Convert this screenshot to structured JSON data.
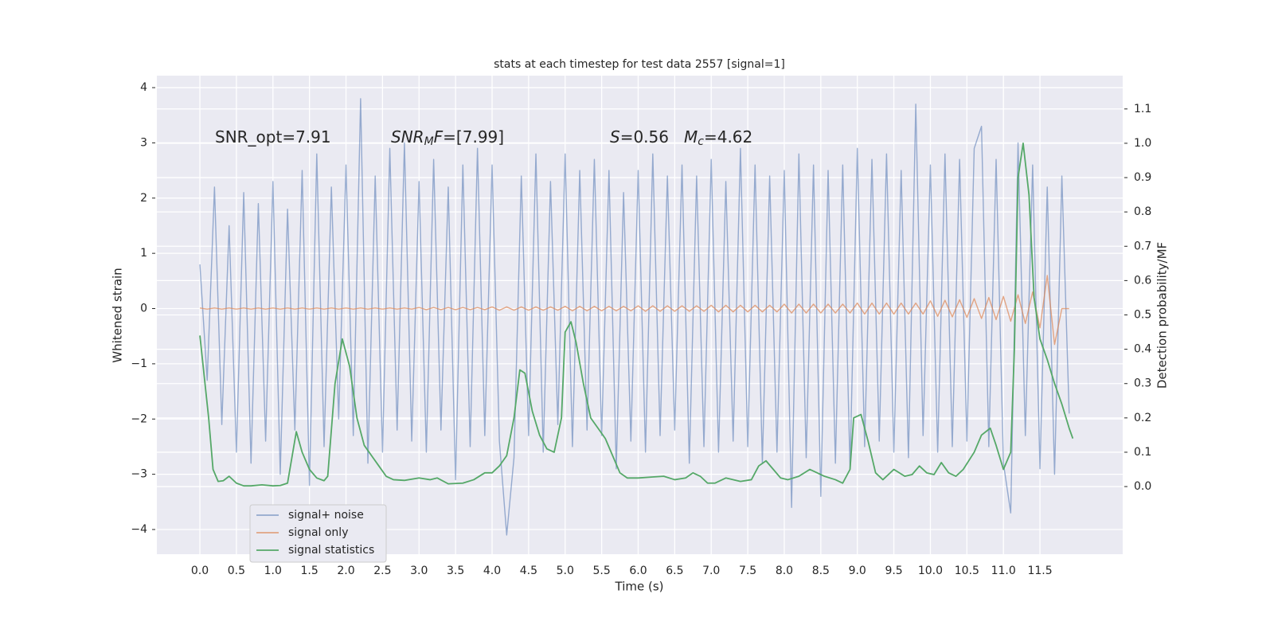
{
  "chart_data": {
    "type": "line",
    "title": "stats at each timestep for test data 2557 [signal=1]",
    "x_label": "Time (s)",
    "y_label": "Whitened strain",
    "y2_label": "Detection probability/MF",
    "xlim": [
      -0.589,
      12.633
    ],
    "ylim": [
      -4.447,
      4.217
    ],
    "y2lim": [
      -0.197,
      1.197
    ],
    "xticks": [
      {
        "value": 0,
        "label": "0.0"
      },
      0.5,
      {
        "value": 1,
        "label": "1.0"
      },
      1.5,
      {
        "value": 2,
        "label": "2.0"
      },
      2.5,
      {
        "value": 3,
        "label": "3.0"
      },
      3.5,
      {
        "value": 4,
        "label": "4.0"
      },
      4.5,
      {
        "value": 5,
        "label": "5.0"
      },
      5.5,
      {
        "value": 6,
        "label": "6.0"
      },
      6.5,
      {
        "value": 7,
        "label": "7.0"
      },
      7.5,
      {
        "value": 8,
        "label": "8.0"
      },
      8.5,
      {
        "value": 9,
        "label": "9.0"
      },
      9.5,
      {
        "value": 10,
        "label": "10.0"
      },
      10.5,
      {
        "value": 11,
        "label": "11.0"
      },
      11.5
    ],
    "yticks": [
      {
        "value": -4,
        "label": "−4"
      },
      {
        "value": -3,
        "label": "−3"
      },
      {
        "value": -2,
        "label": "−2"
      },
      {
        "value": -1,
        "label": "−1"
      },
      0,
      1,
      2,
      3,
      4
    ],
    "y2ticks": [
      {
        "value": 0,
        "label": "0.0"
      },
      0.1,
      0.2,
      0.3,
      0.4,
      0.5,
      0.6,
      0.7,
      0.8,
      0.9,
      {
        "value": 1,
        "label": "1.0"
      },
      1.1
    ],
    "grid": true,
    "legend": "lower left",
    "annotations": [
      [
        {
          "text": "SNR_opt=7.91",
          "style": "normal"
        }
      ],
      [
        {
          "text": "SNR",
          "style": "italic"
        },
        {
          "text": "M",
          "style": "italic-sub"
        },
        {
          "text": "F",
          "style": "italic"
        },
        {
          "text": "=[7.99]",
          "style": "normal"
        }
      ],
      [
        {
          "text": "S",
          "style": "italic"
        },
        {
          "text": "=0.56",
          "style": "normal"
        }
      ],
      [
        {
          "text": "M",
          "style": "italic"
        },
        {
          "text": "c",
          "style": "italic-sub"
        },
        {
          "text": "=4.62",
          "style": "normal"
        }
      ]
    ],
    "x": [
      0.0,
      0.1,
      0.2,
      0.3,
      0.4,
      0.5,
      0.6,
      0.7,
      0.8,
      0.9,
      1.0,
      1.1,
      1.2,
      1.3,
      1.4,
      1.5,
      1.6,
      1.7,
      1.8,
      1.9,
      2.0,
      2.1,
      2.2,
      2.3,
      2.4,
      2.5,
      2.6,
      2.7,
      2.8,
      2.9,
      3.0,
      3.1,
      3.2,
      3.3,
      3.4,
      3.5,
      3.6,
      3.7,
      3.8,
      3.9,
      4.0,
      4.1,
      4.2,
      4.3,
      4.4,
      4.5,
      4.6,
      4.7,
      4.8,
      4.9,
      5.0,
      5.1,
      5.2,
      5.3,
      5.4,
      5.5,
      5.6,
      5.7,
      5.8,
      5.9,
      6.0,
      6.1,
      6.2,
      6.3,
      6.4,
      6.5,
      6.6,
      6.7,
      6.8,
      6.9,
      7.0,
      7.1,
      7.2,
      7.3,
      7.4,
      7.5,
      7.6,
      7.7,
      7.8,
      7.9,
      8.0,
      8.1,
      8.2,
      8.3,
      8.4,
      8.5,
      8.6,
      8.7,
      8.8,
      8.9,
      9.0,
      9.1,
      9.2,
      9.3,
      9.4,
      9.5,
      9.6,
      9.7,
      9.8,
      9.9,
      10.0,
      10.1,
      10.2,
      10.3,
      10.4,
      10.5,
      10.6,
      10.7,
      10.8,
      10.9,
      11.0,
      11.1,
      11.2,
      11.3,
      11.4,
      11.5,
      11.6,
      11.7,
      11.8,
      11.9
    ],
    "series": [
      {
        "name": "signal+ noise",
        "color": "#4c72b0",
        "values": [
          0.8,
          -1.3,
          2.2,
          -2.1,
          1.5,
          -2.6,
          2.1,
          -2.8,
          1.9,
          -2.4,
          2.3,
          -3.0,
          1.8,
          -2.2,
          2.5,
          -3.2,
          2.8,
          -2.5,
          2.2,
          -2.0,
          2.6,
          -2.3,
          3.8,
          -2.8,
          2.4,
          -2.6,
          2.9,
          -2.2,
          3.0,
          -2.4,
          2.3,
          -2.6,
          2.7,
          -2.2,
          2.2,
          -3.1,
          2.6,
          -2.5,
          2.9,
          -2.3,
          2.6,
          -2.4,
          -4.1,
          -2.7,
          2.4,
          -2.3,
          2.8,
          -2.6,
          2.3,
          -2.1,
          2.8,
          -2.5,
          2.5,
          -2.2,
          2.7,
          -2.3,
          2.5,
          -2.9,
          2.1,
          -2.4,
          2.5,
          -2.6,
          2.8,
          -2.3,
          2.4,
          -2.2,
          2.6,
          -2.8,
          2.4,
          -2.5,
          2.7,
          -2.6,
          2.3,
          -2.4,
          2.9,
          -2.5,
          2.6,
          -2.8,
          2.4,
          -2.6,
          2.5,
          -3.6,
          2.8,
          -2.7,
          2.6,
          -3.4,
          2.5,
          -2.8,
          2.6,
          -2.9,
          2.9,
          -2.5,
          2.7,
          -2.4,
          2.8,
          -2.6,
          2.5,
          -2.7,
          3.7,
          -2.3,
          2.6,
          -2.6,
          2.8,
          -2.5,
          2.7,
          -2.4,
          2.9,
          3.3,
          -2.5,
          2.7,
          -2.8,
          -3.7,
          3.0,
          -2.3,
          2.6,
          -2.9,
          2.2,
          -3.0,
          2.4,
          -1.9
        ]
      },
      {
        "name": "signal only",
        "color": "#dd8452",
        "values": [
          0.01,
          -0.01,
          0.01,
          -0.01,
          0.01,
          -0.01,
          0.01,
          -0.01,
          0.01,
          -0.01,
          0.01,
          -0.01,
          0.01,
          -0.01,
          0.01,
          -0.01,
          0.01,
          -0.01,
          0.01,
          -0.01,
          0.01,
          -0.01,
          0.01,
          -0.01,
          0.01,
          -0.01,
          0.01,
          -0.01,
          0.01,
          -0.01,
          0.02,
          -0.02,
          0.02,
          -0.02,
          0.02,
          -0.02,
          0.02,
          -0.02,
          0.02,
          -0.02,
          0.03,
          -0.03,
          0.03,
          -0.03,
          0.03,
          -0.03,
          0.03,
          -0.03,
          0.03,
          -0.03,
          0.04,
          -0.04,
          0.04,
          -0.04,
          0.04,
          -0.04,
          0.04,
          -0.04,
          0.04,
          -0.04,
          0.05,
          -0.05,
          0.05,
          -0.05,
          0.05,
          -0.05,
          0.05,
          -0.05,
          0.05,
          -0.05,
          0.06,
          -0.06,
          0.06,
          -0.06,
          0.06,
          -0.06,
          0.06,
          -0.06,
          0.06,
          -0.06,
          0.08,
          -0.08,
          0.08,
          -0.08,
          0.08,
          -0.08,
          0.08,
          -0.08,
          0.08,
          -0.08,
          0.1,
          -0.1,
          0.1,
          -0.1,
          0.1,
          -0.1,
          0.1,
          -0.1,
          0.1,
          -0.1,
          0.14,
          -0.14,
          0.15,
          -0.15,
          0.16,
          -0.16,
          0.18,
          -0.18,
          0.2,
          -0.2,
          0.22,
          -0.23,
          0.25,
          -0.27,
          0.3,
          -0.35,
          0.6,
          -0.65,
          0,
          0
        ]
      },
      {
        "name": "signal statistics",
        "color": "#55a868",
        "axis": "y2",
        "x": [
          0.0,
          0.12,
          0.18,
          0.25,
          0.32,
          0.4,
          0.5,
          0.6,
          0.7,
          0.85,
          1.0,
          1.1,
          1.2,
          1.32,
          1.4,
          1.5,
          1.6,
          1.7,
          1.75,
          1.85,
          1.95,
          2.05,
          2.15,
          2.25,
          2.35,
          2.45,
          2.55,
          2.65,
          2.8,
          3.0,
          3.15,
          3.25,
          3.4,
          3.6,
          3.75,
          3.9,
          4.0,
          4.1,
          4.2,
          4.3,
          4.38,
          4.45,
          4.55,
          4.65,
          4.75,
          4.85,
          4.95,
          5.0,
          5.08,
          5.15,
          5.25,
          5.35,
          5.45,
          5.55,
          5.65,
          5.75,
          5.85,
          6.0,
          6.2,
          6.35,
          6.5,
          6.65,
          6.75,
          6.85,
          6.95,
          7.05,
          7.2,
          7.4,
          7.55,
          7.65,
          7.75,
          7.85,
          7.95,
          8.05,
          8.2,
          8.35,
          8.45,
          8.55,
          8.7,
          8.8,
          8.9,
          8.95,
          9.05,
          9.15,
          9.25,
          9.35,
          9.5,
          9.65,
          9.75,
          9.85,
          9.95,
          10.05,
          10.15,
          10.25,
          10.35,
          10.45,
          10.6,
          10.7,
          10.82,
          10.9,
          11.0,
          11.1,
          11.15,
          11.2,
          11.27,
          11.35,
          11.42,
          11.5,
          11.6,
          11.7,
          11.8,
          11.9,
          11.95
        ],
        "values": [
          0.44,
          0.2,
          0.05,
          0.015,
          0.017,
          0.03,
          0.01,
          0.002,
          0.002,
          0.005,
          0.002,
          0.003,
          0.01,
          0.16,
          0.1,
          0.05,
          0.025,
          0.017,
          0.03,
          0.3,
          0.43,
          0.35,
          0.2,
          0.12,
          0.09,
          0.06,
          0.03,
          0.02,
          0.018,
          0.025,
          0.02,
          0.025,
          0.008,
          0.01,
          0.02,
          0.04,
          0.04,
          0.06,
          0.09,
          0.2,
          0.34,
          0.33,
          0.22,
          0.15,
          0.11,
          0.1,
          0.2,
          0.45,
          0.48,
          0.42,
          0.3,
          0.2,
          0.17,
          0.14,
          0.09,
          0.04,
          0.025,
          0.025,
          0.028,
          0.03,
          0.02,
          0.025,
          0.04,
          0.03,
          0.01,
          0.01,
          0.025,
          0.015,
          0.02,
          0.06,
          0.075,
          0.05,
          0.025,
          0.02,
          0.03,
          0.05,
          0.04,
          0.03,
          0.02,
          0.01,
          0.05,
          0.2,
          0.21,
          0.13,
          0.04,
          0.02,
          0.05,
          0.03,
          0.035,
          0.06,
          0.04,
          0.035,
          0.07,
          0.04,
          0.03,
          0.05,
          0.1,
          0.15,
          0.17,
          0.12,
          0.05,
          0.1,
          0.4,
          0.9,
          1.0,
          0.85,
          0.55,
          0.43,
          0.37,
          0.3,
          0.24,
          0.17,
          0.14
        ]
      }
    ]
  }
}
